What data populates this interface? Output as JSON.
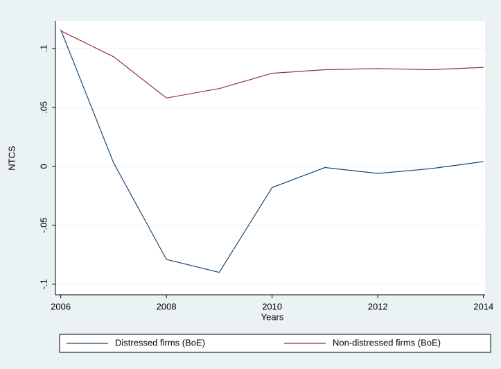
{
  "chart_data": {
    "type": "line",
    "x": [
      2006,
      2007,
      2008,
      2009,
      2010,
      2011,
      2012,
      2013,
      2014
    ],
    "series": [
      {
        "name": "Distressed firms (BoE)",
        "color": "#1a476f",
        "values": [
          0.116,
          0.003,
          -0.079,
          -0.09,
          -0.018,
          -0.001,
          -0.006,
          -0.002,
          0.004
        ]
      },
      {
        "name": "Non-distressed firms (BoE)",
        "color": "#90353b",
        "values": [
          0.115,
          0.093,
          0.058,
          0.066,
          0.079,
          0.082,
          0.083,
          0.082,
          0.084
        ]
      }
    ],
    "xlabel": "Years",
    "ylabel": "NTCS",
    "xlim": [
      2005.9,
      2014.03
    ],
    "ylim": [
      -0.109,
      0.1235
    ],
    "xticks": [
      2006,
      2008,
      2010,
      2012,
      2014
    ],
    "yticks": [
      {
        "value": -0.1,
        "label": "-.1"
      },
      {
        "value": -0.05,
        "label": "-.05"
      },
      {
        "value": 0,
        "label": "0"
      },
      {
        "value": 0.05,
        "label": ".05"
      },
      {
        "value": 0.1,
        "label": ".1"
      }
    ],
    "grid": true,
    "legend": "bottom"
  }
}
